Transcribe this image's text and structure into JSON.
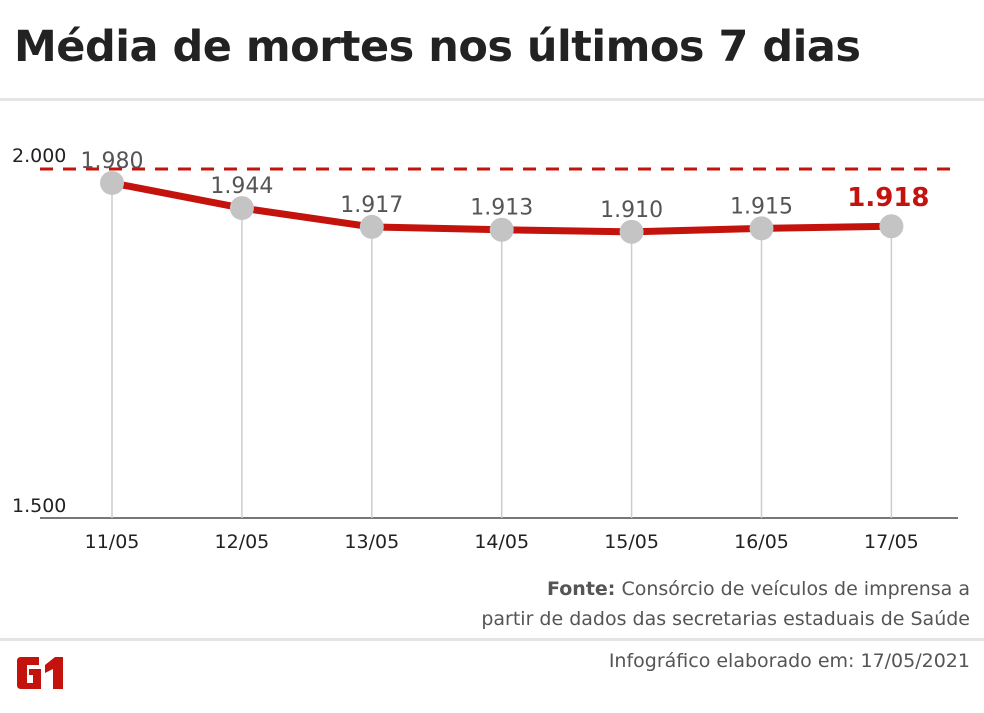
{
  "title": "Média de mortes nos últimos 7 dias",
  "source_label": "Fonte:",
  "source_text_1": "Consórcio de veículos de imprensa a",
  "source_text_2": "partir de dados das secretarias estaduais de Saúde",
  "info": "Infográfico elaborado em: 17/05/2021",
  "logo": "G1",
  "colors": {
    "line": "#c4120c",
    "point": "#c4c4c4",
    "text": "#555555"
  },
  "chart_data": {
    "type": "line",
    "title": "Média de mortes nos últimos 7 dias",
    "categories": [
      "11/05",
      "12/05",
      "13/05",
      "14/05",
      "15/05",
      "16/05",
      "17/05"
    ],
    "values": [
      1980,
      1944,
      1917,
      1913,
      1910,
      1915,
      1918
    ],
    "value_labels": [
      "1.980",
      "1.944",
      "1.917",
      "1.913",
      "1.910",
      "1.915",
      "1.918"
    ],
    "ylim": [
      1500,
      2000
    ],
    "yticks": [
      {
        "value": 1500,
        "label": "1.500"
      },
      {
        "value": 2000,
        "label": "2.000"
      }
    ],
    "reference_line": 2000,
    "highlight_last": true
  }
}
